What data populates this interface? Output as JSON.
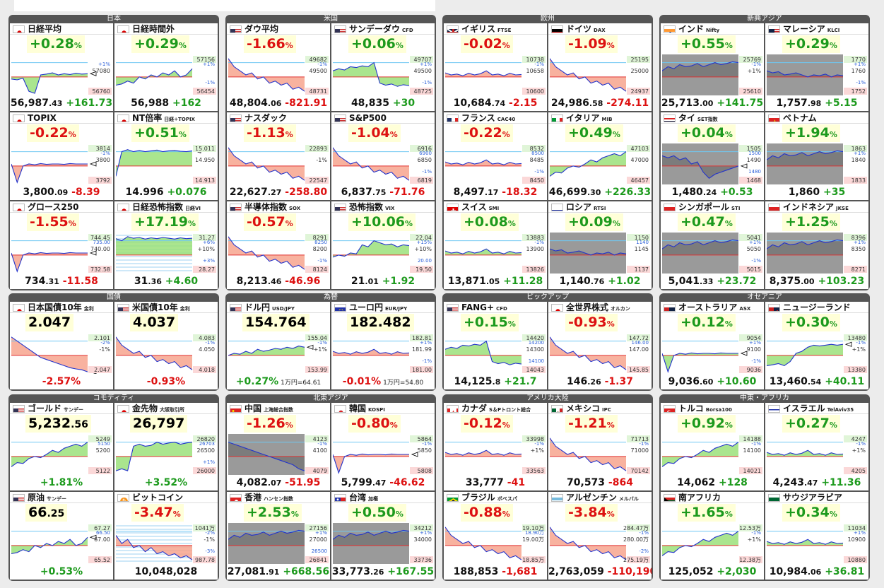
{
  "groups": [
    {
      "title": "日本",
      "cells": [
        {
          "name": "日経平均",
          "sub": "",
          "flag": "jp",
          "change": "+0.28",
          "unit": "%",
          "dir": "pos",
          "value_int": "56,987",
          "value_dec": ".43",
          "delta": "+161.73",
          "axis_top": "",
          "axis_mid": "57080",
          "axis_bot": "56760",
          "pct_labels": [
            "+1%"
          ]
        },
        {
          "name": "日経時間外",
          "sub": "",
          "flag": "jp",
          "change": "+0.29",
          "unit": "%",
          "dir": "pos",
          "value_int": "56,988",
          "value_dec": "",
          "delta": "+162",
          "axis_top": "57156",
          "axis_mid": "",
          "axis_bot": "56454",
          "pct_labels": [
            "+1%",
            "-1%"
          ]
        },
        {
          "name": "TOPIX",
          "sub": "",
          "flag": "jp",
          "change": "-0.22",
          "unit": "%",
          "dir": "neg",
          "value_int": "3,800",
          "value_dec": ".09",
          "delta": "-8.39",
          "axis_top": "3814",
          "axis_mid": "3800",
          "axis_bot": "3792",
          "pct_labels": [
            "-1%"
          ]
        },
        {
          "name": "NT倍率",
          "sub": "日経÷TOPIX",
          "flag": "jp",
          "change": "+0.51",
          "unit": "%",
          "dir": "pos",
          "value_int": "14.996",
          "value_dec": "",
          "delta": "+0.076",
          "axis_top": "15.011",
          "axis_mid": "14.950",
          "axis_bot": "14.913",
          "pct_labels": []
        },
        {
          "name": "グロース250",
          "sub": "",
          "flag": "jp",
          "change": "-1.55",
          "unit": "%",
          "dir": "neg",
          "value_int": "734",
          "value_dec": ".31",
          "delta": "-11.58",
          "axis_top": "744.45",
          "axis_mid": "740.00",
          "axis_bot": "732.58",
          "pct_labels": [
            "735.00"
          ]
        },
        {
          "name": "日経恐怖指数",
          "sub": "日経VI",
          "flag": "jp",
          "change": "+17.19",
          "unit": "%",
          "dir": "pos",
          "value_int": "31",
          "value_dec": ".36",
          "delta": "+4.60",
          "axis_top": "31.27",
          "axis_mid": "+10%",
          "axis_bot": "28.27",
          "pct_labels": [
            "+6%",
            "+3%"
          ]
        }
      ]
    },
    {
      "title": "米国",
      "cells": [
        {
          "name": "ダウ平均",
          "sub": "",
          "flag": "us",
          "change": "-1.66",
          "unit": "%",
          "dir": "neg",
          "value_int": "48,804",
          "value_dec": ".06",
          "delta": "-821.91",
          "axis_top": "49682",
          "axis_mid": "49500",
          "axis_bot": "48731",
          "pct_labels": [
            "-1%"
          ]
        },
        {
          "name": "サンデーダウ",
          "sub": "CFD",
          "flag": "us",
          "change": "+0.06",
          "unit": "%",
          "dir": "pos",
          "value_int": "48,835",
          "value_dec": "",
          "delta": "+30",
          "axis_top": "49707",
          "axis_mid": "49500",
          "axis_bot": "48725",
          "pct_labels": [
            "+1%",
            "-1%"
          ]
        },
        {
          "name": "ナスダック",
          "sub": "",
          "flag": "us",
          "change": "-1.13",
          "unit": "%",
          "dir": "neg",
          "value_int": "22,627",
          "value_dec": ".27",
          "delta": "-258.80",
          "axis_top": "22893",
          "axis_mid": "-1%",
          "axis_bot": "22547",
          "pct_labels": []
        },
        {
          "name": "S&P500",
          "sub": "",
          "flag": "us",
          "change": "-1.04",
          "unit": "%",
          "dir": "neg",
          "value_int": "6,837",
          "value_dec": ".75",
          "delta": "-71.76",
          "axis_top": "6916",
          "axis_mid": "6850",
          "axis_bot": "6819",
          "pct_labels": [
            "6900",
            "-1%"
          ]
        },
        {
          "name": "半導体指数",
          "sub": "SOX",
          "flag": "us",
          "change": "-0.57",
          "unit": "%",
          "dir": "neg",
          "value_int": "8,213",
          "value_dec": ".46",
          "delta": "-46.96",
          "axis_top": "8291",
          "axis_mid": "8200",
          "axis_bot": "8124",
          "pct_labels": [
            "8250",
            "-1%"
          ]
        },
        {
          "name": "恐怖指数",
          "sub": "VIX",
          "flag": "us",
          "change": "+10.06",
          "unit": "%",
          "dir": "pos",
          "value_int": "21",
          "value_dec": ".01",
          "delta": "+1.92",
          "axis_top": "22.04",
          "axis_mid": "+10%",
          "axis_bot": "19.50",
          "pct_labels": [
            "+15%",
            "20.00"
          ]
        }
      ]
    },
    {
      "title": "欧州",
      "cells": [
        {
          "name": "イギリス",
          "sub": "FTSE",
          "flag": "gb",
          "change": "-0.02",
          "unit": "%",
          "dir": "neg",
          "value_int": "10,684",
          "value_dec": ".74",
          "delta": "-2.15",
          "axis_top": "10738",
          "axis_mid": "10658",
          "axis_bot": "10600",
          "pct_labels": [
            "-1%"
          ]
        },
        {
          "name": "ドイツ",
          "sub": "DAX",
          "flag": "de",
          "change": "-1.09",
          "unit": "%",
          "dir": "neg",
          "value_int": "24,986",
          "value_dec": ".58",
          "delta": "-274.11",
          "axis_top": "25195",
          "axis_mid": "25000",
          "axis_bot": "24937",
          "pct_labels": []
        },
        {
          "name": "フランス",
          "sub": "CAC40",
          "flag": "fr",
          "change": "-0.22",
          "unit": "%",
          "dir": "neg",
          "value_int": "8,497",
          "value_dec": ".17",
          "delta": "-18.32",
          "axis_top": "8532",
          "axis_mid": "8485",
          "axis_bot": "8450",
          "pct_labels": [
            "8500",
            "-1%"
          ]
        },
        {
          "name": "イタリア",
          "sub": "MIB",
          "flag": "it",
          "change": "+0.49",
          "unit": "%",
          "dir": "pos",
          "value_int": "46,699",
          "value_dec": ".30",
          "delta": "+226.33",
          "axis_top": "47103",
          "axis_mid": "47000",
          "axis_bot": "46457",
          "pct_labels": []
        }
      ]
    }
  ],
  "chart_note": "Sparkline shapes are illustrative"
}
